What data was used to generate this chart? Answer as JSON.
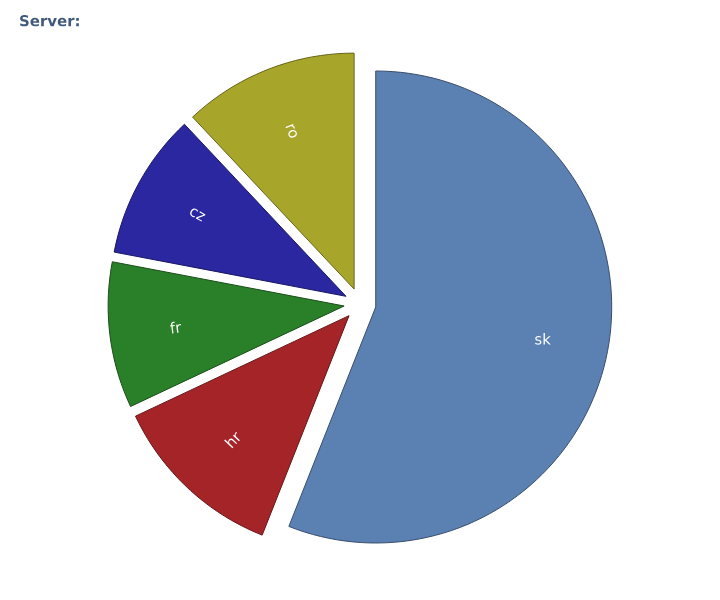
{
  "chart_data": {
    "type": "pie",
    "title": "Server:",
    "categories": [
      "sk",
      "hr",
      "fr",
      "cz",
      "ro"
    ],
    "values": [
      56,
      12,
      10,
      10,
      12
    ],
    "colors": [
      "#5b80b2",
      "#a52428",
      "#2a8028",
      "#2a27a0",
      "#a8a62a"
    ],
    "legend": false
  }
}
